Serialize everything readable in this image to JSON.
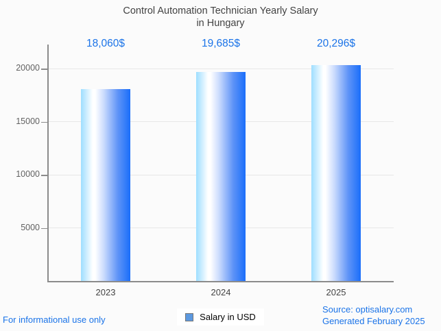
{
  "title": {
    "line1": "Control Automation Technician Yearly Salary",
    "line2": "in Hungary"
  },
  "legend": {
    "label": "Salary in USD",
    "marker_color": "#5c99e0"
  },
  "footer": {
    "left": "For informational use only",
    "source": "Source: optisalary.com",
    "generated": "Generated February 2025"
  },
  "colors": {
    "background": "#fbfbfb",
    "accent_blue": "#1a73e8",
    "title_text": "#424242",
    "axis_text": "#616161",
    "axis_line": "#8b8b8b",
    "gridline": "#e7e7e7"
  },
  "chart_data": {
    "type": "bar",
    "title": "Control Automation Technician Yearly Salary in Hungary",
    "categories": [
      "2023",
      "2024",
      "2025"
    ],
    "series": [
      {
        "name": "Salary in USD",
        "values": [
          18060,
          19685,
          20296
        ]
      }
    ],
    "value_labels": [
      "18,060$",
      "19,685$",
      "20,296$"
    ],
    "y_ticks": [
      5000,
      10000,
      15000,
      20000
    ],
    "ylim": [
      0,
      20800
    ],
    "xlabel": "",
    "ylabel": "",
    "grid": true,
    "legend_position": "bottom",
    "bar_gradient": [
      [
        "#9edeff",
        "0%"
      ],
      [
        "#ffffff",
        "24%"
      ],
      [
        "#ffffff",
        "29%"
      ],
      [
        "#ccdcfd",
        "46%"
      ],
      [
        "#5e93f7",
        "75%"
      ],
      [
        "#1a6efa",
        "100%"
      ]
    ]
  }
}
